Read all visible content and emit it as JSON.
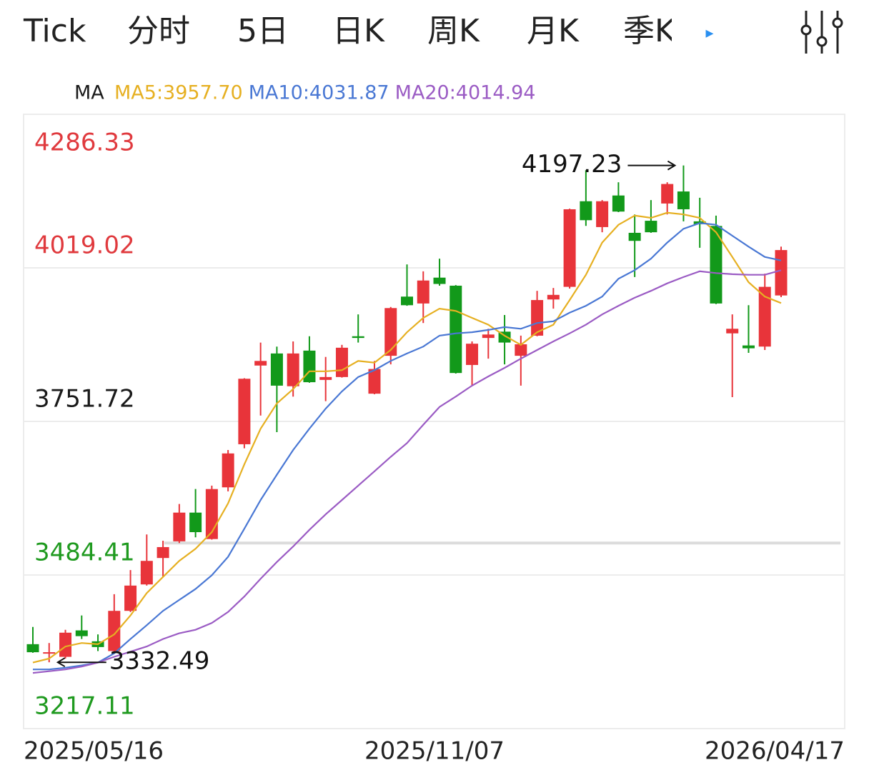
{
  "tabs": [
    "Tick",
    "分时",
    "5日",
    "日K",
    "周K",
    "月K",
    "季K"
  ],
  "active_tab": 4,
  "chart_data": {
    "type": "candlestick",
    "legend_title": "MA",
    "categories": [
      "2025/05/16",
      null,
      null,
      null,
      null,
      null,
      null,
      null,
      null,
      null,
      null,
      null,
      null,
      null,
      null,
      null,
      null,
      null,
      null,
      null,
      null,
      null,
      null,
      null,
      null,
      "2025/11/07",
      null,
      null,
      null,
      null,
      null,
      null,
      null,
      null,
      null,
      null,
      null,
      null,
      null,
      null,
      null,
      null,
      null,
      null,
      null,
      null,
      "2026/04/17"
    ],
    "open": [
      3364,
      3348,
      3342,
      3388,
      3369,
      3352,
      3422,
      3468,
      3514,
      3543,
      3593,
      3547,
      3637,
      3712,
      3849,
      3870,
      3813,
      3875,
      3824,
      3829,
      3900,
      3800,
      3866,
      3969,
      3957,
      4002,
      3988,
      3850,
      3897,
      3908,
      3866,
      3901,
      3964,
      3986,
      4135,
      4090,
      4145,
      4080,
      4101,
      4131,
      4152,
      4100,
      4092,
      3905,
      3884,
      3882,
      3971
    ],
    "high": [
      3394,
      3366,
      3389,
      3414,
      3381,
      3451,
      3493,
      3555,
      3544,
      3608,
      3634,
      3640,
      3702,
      3827,
      3889,
      3882,
      3891,
      3900,
      3864,
      3885,
      3938,
      3857,
      3951,
      4025,
      4013,
      4035,
      3989,
      3891,
      3913,
      3937,
      3901,
      3979,
      3984,
      4122,
      4189,
      4137,
      4168,
      4112,
      4137,
      4168,
      4197.23,
      4141,
      4110,
      3938,
      3954,
      4009,
      4056
    ],
    "low": [
      3349,
      3332.49,
      3339,
      3373,
      3352,
      3348,
      3420,
      3466,
      3481,
      3540,
      3550,
      3546,
      3630,
      3705,
      3762,
      3733,
      3795,
      3819,
      3787,
      3828,
      3889,
      3799,
      3851,
      3953,
      3923,
      3988,
      3835,
      3814,
      3861,
      3851,
      3814,
      3900,
      3948,
      3983,
      4092,
      4081,
      4116,
      4003,
      4080,
      4112,
      4100,
      4054,
      3956,
      3794,
      3871,
      3876,
      3968
    ],
    "close": [
      3350,
      3350,
      3384,
      3378,
      3359,
      3422,
      3466,
      3509,
      3533,
      3593,
      3559,
      3634,
      3696,
      3826,
      3857,
      3814,
      3870,
      3820,
      3829,
      3880,
      3897,
      3843,
      3949,
      3954,
      3997,
      3991,
      3836,
      3887,
      3903,
      3889,
      3886,
      3963,
      3972,
      4121,
      4102,
      4135,
      4117,
      4066,
      4081,
      4165,
      4121,
      4095,
      3957,
      3913,
      3879,
      3986,
      4050
    ],
    "up_color": "#e8343a",
    "down_color": "#12991a",
    "series": [
      {
        "name": "MA5:3957.70",
        "color": "#e6b022",
        "values": [
          3332,
          3339,
          3360,
          3366,
          3364,
          3381,
          3414,
          3453,
          3481,
          3509,
          3530,
          3559,
          3609,
          3677,
          3739,
          3783,
          3808,
          3839,
          3839,
          3841,
          3857,
          3854,
          3876,
          3907,
          3932,
          3948,
          3944,
          3932,
          3920,
          3901,
          3885,
          3907,
          3920,
          3963,
          4007,
          4063,
          4094,
          4110,
          4106,
          4115,
          4112,
          4106,
          4081,
          4038,
          3994,
          3969,
          3957.7
        ]
      },
      {
        "name": "MA10:4031.87",
        "color": "#4a78d4",
        "values": [
          3320,
          3320,
          3323,
          3327,
          3332,
          3348,
          3373,
          3397,
          3422,
          3441,
          3460,
          3484,
          3516,
          3565,
          3615,
          3659,
          3702,
          3739,
          3774,
          3804,
          3829,
          3841,
          3857,
          3870,
          3882,
          3901,
          3905,
          3907,
          3911,
          3916,
          3913,
          3923,
          3926,
          3941,
          3953,
          3969,
          4000,
          4015,
          4035,
          4063,
          4087,
          4097,
          4094,
          4075,
          4056,
          4038,
          4031.87
        ]
      },
      {
        "name": "MA20:4014.94",
        "color": "#9b5cc4",
        "values": [
          3314,
          3317,
          3320,
          3325,
          3332,
          3342,
          3351,
          3360,
          3373,
          3383,
          3389,
          3401,
          3420,
          3447,
          3478,
          3507,
          3534,
          3563,
          3590,
          3615,
          3640,
          3665,
          3690,
          3714,
          3746,
          3777,
          3795,
          3814,
          3830,
          3845,
          3861,
          3876,
          3891,
          3905,
          3920,
          3938,
          3953,
          3967,
          3979,
          3992,
          4003,
          4013,
          4010,
          4008,
          4007,
          4007,
          4014.94
        ]
      }
    ],
    "reference_value": 3540,
    "ylim": [
      3217.11,
      4286.33
    ],
    "yticks": [
      4286.33,
      4019.02,
      3751.72,
      3484.41,
      3217.11
    ],
    "ytick_colors": [
      "#e03a3e",
      "#e03a3e",
      "#1a1a1a",
      "#1f9a1f",
      "#1f9a1f"
    ],
    "grid": true
  }
}
